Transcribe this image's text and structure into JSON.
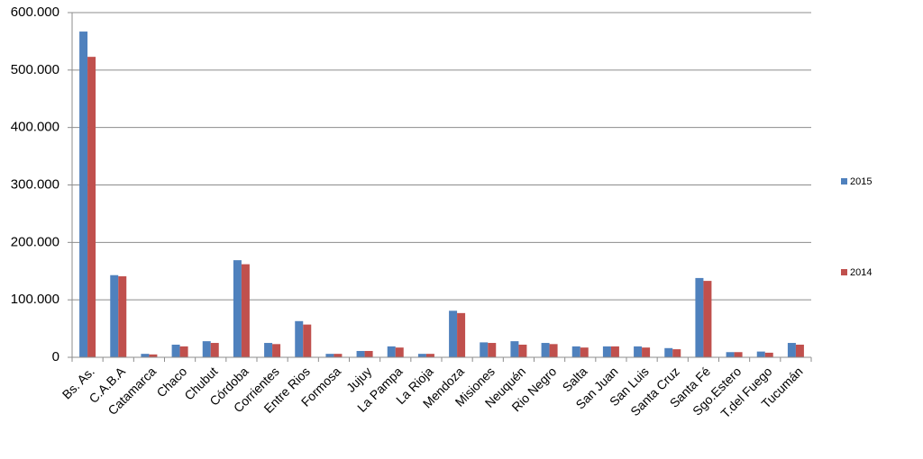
{
  "chart_data": {
    "type": "bar",
    "categories": [
      "Bs. As.",
      "C.A.B.A",
      "Catamarca",
      "Chaco",
      "Chubut",
      "Córdoba",
      "Corrientes",
      "Entre Rios",
      "Formosa",
      "Jujuy",
      "La Pampa",
      "La Rioja",
      "Mendoza",
      "Misiones",
      "Neuquén",
      "Rio Negro",
      "Salta",
      "San Juan",
      "San Luis",
      "Santa Cruz",
      "Santa Fé",
      "Sgo.Estero",
      "T.del Fuego",
      "Tucumán"
    ],
    "series": [
      {
        "name": "2015",
        "color": "#4f81bd",
        "values": [
          567000,
          143000,
          6000,
          22000,
          28000,
          169000,
          25000,
          63000,
          6000,
          11000,
          19000,
          6000,
          81000,
          26000,
          28000,
          25000,
          19000,
          19000,
          19000,
          16000,
          138000,
          9000,
          10000,
          25000
        ]
      },
      {
        "name": "2014",
        "color": "#c0504d",
        "values": [
          523000,
          141000,
          5000,
          19000,
          25000,
          162000,
          23000,
          57000,
          6000,
          11000,
          17000,
          6000,
          77000,
          25000,
          22000,
          23000,
          17000,
          19000,
          17000,
          14000,
          133000,
          9000,
          8000,
          22000
        ]
      }
    ],
    "ylim": [
      0,
      600000
    ],
    "yticks": [
      0,
      {
        "value": 100000,
        "label": "100.000"
      },
      {
        "value": 200000,
        "label": "200.000"
      },
      {
        "value": 300000,
        "label": "300.000"
      },
      {
        "value": 400000,
        "label": "400.000"
      },
      {
        "value": 500000,
        "label": "500.000"
      },
      {
        "value": 600000,
        "label": "600.000"
      }
    ],
    "grid": true,
    "legend": "right"
  }
}
